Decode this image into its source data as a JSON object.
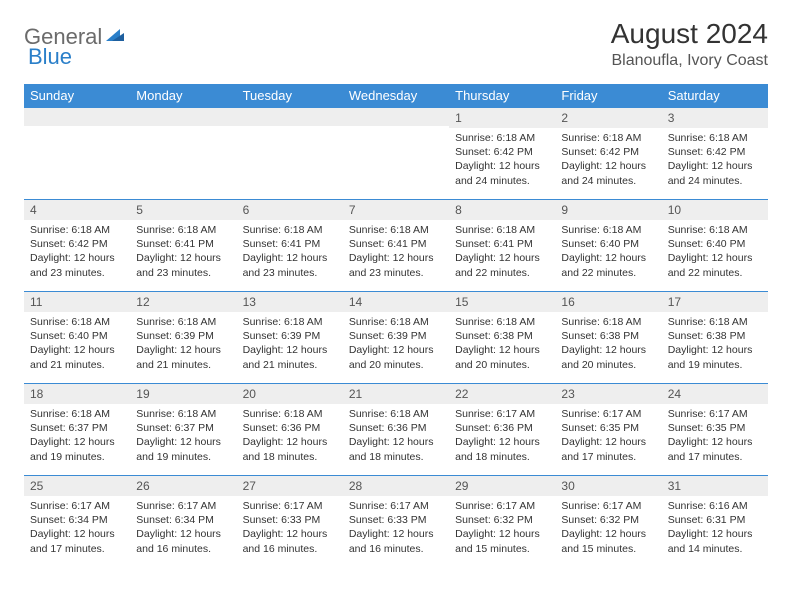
{
  "logo": {
    "text1": "General",
    "text2": "Blue"
  },
  "title": {
    "month": "August 2024",
    "location": "Blanoufla, Ivory Coast"
  },
  "colors": {
    "header_bg": "#3b8bd4",
    "header_text": "#ffffff",
    "daynum_bg": "#eeeeee",
    "cell_border": "#3b8bd4",
    "body_text": "#333333",
    "logo_gray": "#6b6b6b",
    "logo_blue": "#2a7fc9"
  },
  "weekdays": [
    "Sunday",
    "Monday",
    "Tuesday",
    "Wednesday",
    "Thursday",
    "Friday",
    "Saturday"
  ],
  "weeks": [
    [
      {
        "num": "",
        "sunrise": "",
        "sunset": "",
        "daylight": ""
      },
      {
        "num": "",
        "sunrise": "",
        "sunset": "",
        "daylight": ""
      },
      {
        "num": "",
        "sunrise": "",
        "sunset": "",
        "daylight": ""
      },
      {
        "num": "",
        "sunrise": "",
        "sunset": "",
        "daylight": ""
      },
      {
        "num": "1",
        "sunrise": "Sunrise: 6:18 AM",
        "sunset": "Sunset: 6:42 PM",
        "daylight": "Daylight: 12 hours and 24 minutes."
      },
      {
        "num": "2",
        "sunrise": "Sunrise: 6:18 AM",
        "sunset": "Sunset: 6:42 PM",
        "daylight": "Daylight: 12 hours and 24 minutes."
      },
      {
        "num": "3",
        "sunrise": "Sunrise: 6:18 AM",
        "sunset": "Sunset: 6:42 PM",
        "daylight": "Daylight: 12 hours and 24 minutes."
      }
    ],
    [
      {
        "num": "4",
        "sunrise": "Sunrise: 6:18 AM",
        "sunset": "Sunset: 6:42 PM",
        "daylight": "Daylight: 12 hours and 23 minutes."
      },
      {
        "num": "5",
        "sunrise": "Sunrise: 6:18 AM",
        "sunset": "Sunset: 6:41 PM",
        "daylight": "Daylight: 12 hours and 23 minutes."
      },
      {
        "num": "6",
        "sunrise": "Sunrise: 6:18 AM",
        "sunset": "Sunset: 6:41 PM",
        "daylight": "Daylight: 12 hours and 23 minutes."
      },
      {
        "num": "7",
        "sunrise": "Sunrise: 6:18 AM",
        "sunset": "Sunset: 6:41 PM",
        "daylight": "Daylight: 12 hours and 23 minutes."
      },
      {
        "num": "8",
        "sunrise": "Sunrise: 6:18 AM",
        "sunset": "Sunset: 6:41 PM",
        "daylight": "Daylight: 12 hours and 22 minutes."
      },
      {
        "num": "9",
        "sunrise": "Sunrise: 6:18 AM",
        "sunset": "Sunset: 6:40 PM",
        "daylight": "Daylight: 12 hours and 22 minutes."
      },
      {
        "num": "10",
        "sunrise": "Sunrise: 6:18 AM",
        "sunset": "Sunset: 6:40 PM",
        "daylight": "Daylight: 12 hours and 22 minutes."
      }
    ],
    [
      {
        "num": "11",
        "sunrise": "Sunrise: 6:18 AM",
        "sunset": "Sunset: 6:40 PM",
        "daylight": "Daylight: 12 hours and 21 minutes."
      },
      {
        "num": "12",
        "sunrise": "Sunrise: 6:18 AM",
        "sunset": "Sunset: 6:39 PM",
        "daylight": "Daylight: 12 hours and 21 minutes."
      },
      {
        "num": "13",
        "sunrise": "Sunrise: 6:18 AM",
        "sunset": "Sunset: 6:39 PM",
        "daylight": "Daylight: 12 hours and 21 minutes."
      },
      {
        "num": "14",
        "sunrise": "Sunrise: 6:18 AM",
        "sunset": "Sunset: 6:39 PM",
        "daylight": "Daylight: 12 hours and 20 minutes."
      },
      {
        "num": "15",
        "sunrise": "Sunrise: 6:18 AM",
        "sunset": "Sunset: 6:38 PM",
        "daylight": "Daylight: 12 hours and 20 minutes."
      },
      {
        "num": "16",
        "sunrise": "Sunrise: 6:18 AM",
        "sunset": "Sunset: 6:38 PM",
        "daylight": "Daylight: 12 hours and 20 minutes."
      },
      {
        "num": "17",
        "sunrise": "Sunrise: 6:18 AM",
        "sunset": "Sunset: 6:38 PM",
        "daylight": "Daylight: 12 hours and 19 minutes."
      }
    ],
    [
      {
        "num": "18",
        "sunrise": "Sunrise: 6:18 AM",
        "sunset": "Sunset: 6:37 PM",
        "daylight": "Daylight: 12 hours and 19 minutes."
      },
      {
        "num": "19",
        "sunrise": "Sunrise: 6:18 AM",
        "sunset": "Sunset: 6:37 PM",
        "daylight": "Daylight: 12 hours and 19 minutes."
      },
      {
        "num": "20",
        "sunrise": "Sunrise: 6:18 AM",
        "sunset": "Sunset: 6:36 PM",
        "daylight": "Daylight: 12 hours and 18 minutes."
      },
      {
        "num": "21",
        "sunrise": "Sunrise: 6:18 AM",
        "sunset": "Sunset: 6:36 PM",
        "daylight": "Daylight: 12 hours and 18 minutes."
      },
      {
        "num": "22",
        "sunrise": "Sunrise: 6:17 AM",
        "sunset": "Sunset: 6:36 PM",
        "daylight": "Daylight: 12 hours and 18 minutes."
      },
      {
        "num": "23",
        "sunrise": "Sunrise: 6:17 AM",
        "sunset": "Sunset: 6:35 PM",
        "daylight": "Daylight: 12 hours and 17 minutes."
      },
      {
        "num": "24",
        "sunrise": "Sunrise: 6:17 AM",
        "sunset": "Sunset: 6:35 PM",
        "daylight": "Daylight: 12 hours and 17 minutes."
      }
    ],
    [
      {
        "num": "25",
        "sunrise": "Sunrise: 6:17 AM",
        "sunset": "Sunset: 6:34 PM",
        "daylight": "Daylight: 12 hours and 17 minutes."
      },
      {
        "num": "26",
        "sunrise": "Sunrise: 6:17 AM",
        "sunset": "Sunset: 6:34 PM",
        "daylight": "Daylight: 12 hours and 16 minutes."
      },
      {
        "num": "27",
        "sunrise": "Sunrise: 6:17 AM",
        "sunset": "Sunset: 6:33 PM",
        "daylight": "Daylight: 12 hours and 16 minutes."
      },
      {
        "num": "28",
        "sunrise": "Sunrise: 6:17 AM",
        "sunset": "Sunset: 6:33 PM",
        "daylight": "Daylight: 12 hours and 16 minutes."
      },
      {
        "num": "29",
        "sunrise": "Sunrise: 6:17 AM",
        "sunset": "Sunset: 6:32 PM",
        "daylight": "Daylight: 12 hours and 15 minutes."
      },
      {
        "num": "30",
        "sunrise": "Sunrise: 6:17 AM",
        "sunset": "Sunset: 6:32 PM",
        "daylight": "Daylight: 12 hours and 15 minutes."
      },
      {
        "num": "31",
        "sunrise": "Sunrise: 6:16 AM",
        "sunset": "Sunset: 6:31 PM",
        "daylight": "Daylight: 12 hours and 14 minutes."
      }
    ]
  ]
}
